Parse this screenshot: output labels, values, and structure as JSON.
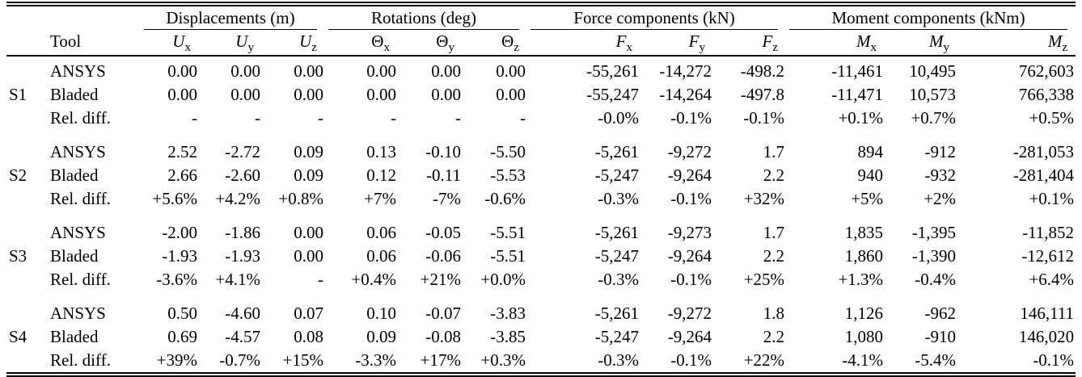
{
  "table": {
    "tool_header": "Tool",
    "column_groups": [
      {
        "name": "displacements",
        "label": "Displacements (m)",
        "columns": [
          {
            "name": "u-x",
            "base": "U",
            "sub": "x",
            "italic": true
          },
          {
            "name": "u-y",
            "base": "U",
            "sub": "y",
            "italic": true
          },
          {
            "name": "u-z",
            "base": "U",
            "sub": "z",
            "italic": true
          }
        ]
      },
      {
        "name": "rotations",
        "label": "Rotations (deg)",
        "columns": [
          {
            "name": "theta-x",
            "base": "Θ",
            "sub": "x",
            "italic": false
          },
          {
            "name": "theta-y",
            "base": "Θ",
            "sub": "y",
            "italic": false
          },
          {
            "name": "theta-z",
            "base": "Θ",
            "sub": "z",
            "italic": false
          }
        ]
      },
      {
        "name": "force-components",
        "label": "Force components (kN)",
        "columns": [
          {
            "name": "f-x",
            "base": "F",
            "sub": "x",
            "italic": true
          },
          {
            "name": "f-y",
            "base": "F",
            "sub": "y",
            "italic": true
          },
          {
            "name": "f-z",
            "base": "F",
            "sub": "z",
            "italic": true
          }
        ]
      },
      {
        "name": "moment-components",
        "label": "Moment components (kNm)",
        "columns": [
          {
            "name": "m-x",
            "base": "M",
            "sub": "x",
            "italic": true
          },
          {
            "name": "m-y",
            "base": "M",
            "sub": "y",
            "italic": true
          },
          {
            "name": "m-z",
            "base": "M",
            "sub": "z",
            "italic": true
          }
        ]
      }
    ],
    "row_groups": [
      {
        "id": "S1",
        "rows": [
          {
            "tool": "ANSYS",
            "values": [
              "0.00",
              "0.00",
              "0.00",
              "0.00",
              "0.00",
              "0.00",
              "-55,261",
              "-14,272",
              "-498.2",
              "-11,461",
              "10,495",
              "762,603"
            ]
          },
          {
            "tool": "Bladed",
            "values": [
              "0.00",
              "0.00",
              "0.00",
              "0.00",
              "0.00",
              "0.00",
              "-55,247",
              "-14,264",
              "-497.8",
              "-11,471",
              "10,573",
              "766,338"
            ]
          },
          {
            "tool": "Rel. diff.",
            "values": [
              "-",
              "-",
              "-",
              "-",
              "-",
              "-",
              "-0.0%",
              "-0.1%",
              "-0.1%",
              "+0.1%",
              "+0.7%",
              "+0.5%"
            ]
          }
        ]
      },
      {
        "id": "S2",
        "rows": [
          {
            "tool": "ANSYS",
            "values": [
              "2.52",
              "-2.72",
              "0.09",
              "0.13",
              "-0.10",
              "-5.50",
              "-5,261",
              "-9,272",
              "1.7",
              "894",
              "-912",
              "-281,053"
            ]
          },
          {
            "tool": "Bladed",
            "values": [
              "2.66",
              "-2.60",
              "0.09",
              "0.12",
              "-0.11",
              "-5.53",
              "-5,247",
              "-9,264",
              "2.2",
              "940",
              "-932",
              "-281,404"
            ]
          },
          {
            "tool": "Rel. diff.",
            "values": [
              "+5.6%",
              "+4.2%",
              "+0.8%",
              "+7%",
              "-7%",
              "-0.6%",
              "-0.3%",
              "-0.1%",
              "+32%",
              "+5%",
              "+2%",
              "+0.1%"
            ]
          }
        ]
      },
      {
        "id": "S3",
        "rows": [
          {
            "tool": "ANSYS",
            "values": [
              "-2.00",
              "-1.86",
              "0.00",
              "0.06",
              "-0.05",
              "-5.51",
              "-5,261",
              "-9,273",
              "1.7",
              "1,835",
              "-1,395",
              "-11,852"
            ]
          },
          {
            "tool": "Bladed",
            "values": [
              "-1.93",
              "-1.93",
              "0.00",
              "0.06",
              "-0.06",
              "-5.51",
              "-5,247",
              "-9,264",
              "2.2",
              "1,860",
              "-1,390",
              "-12,612"
            ]
          },
          {
            "tool": "Rel. diff.",
            "values": [
              "-3.6%",
              "+4.1%",
              "-",
              "+0.4%",
              "+21%",
              "+0.0%",
              "-0.3%",
              "-0.1%",
              "+25%",
              "+1.3%",
              "-0.4%",
              "+6.4%"
            ]
          }
        ]
      },
      {
        "id": "S4",
        "rows": [
          {
            "tool": "ANSYS",
            "values": [
              "0.50",
              "-4.60",
              "0.07",
              "0.10",
              "-0.07",
              "-3.83",
              "-5,261",
              "-9,272",
              "1.8",
              "1,126",
              "-962",
              "146,111"
            ]
          },
          {
            "tool": "Bladed",
            "values": [
              "0.69",
              "-4.57",
              "0.08",
              "0.09",
              "-0.08",
              "-3.85",
              "-5,247",
              "-9,264",
              "2.2",
              "1,080",
              "-910",
              "146,020"
            ]
          },
          {
            "tool": "Rel. diff.",
            "values": [
              "+39%",
              "-0.7%",
              "+15%",
              "-3.3%",
              "+17%",
              "+0.3%",
              "-0.3%",
              "-0.1%",
              "+22%",
              "-4.1%",
              "-5.4%",
              "-0.1%"
            ]
          }
        ]
      }
    ]
  }
}
